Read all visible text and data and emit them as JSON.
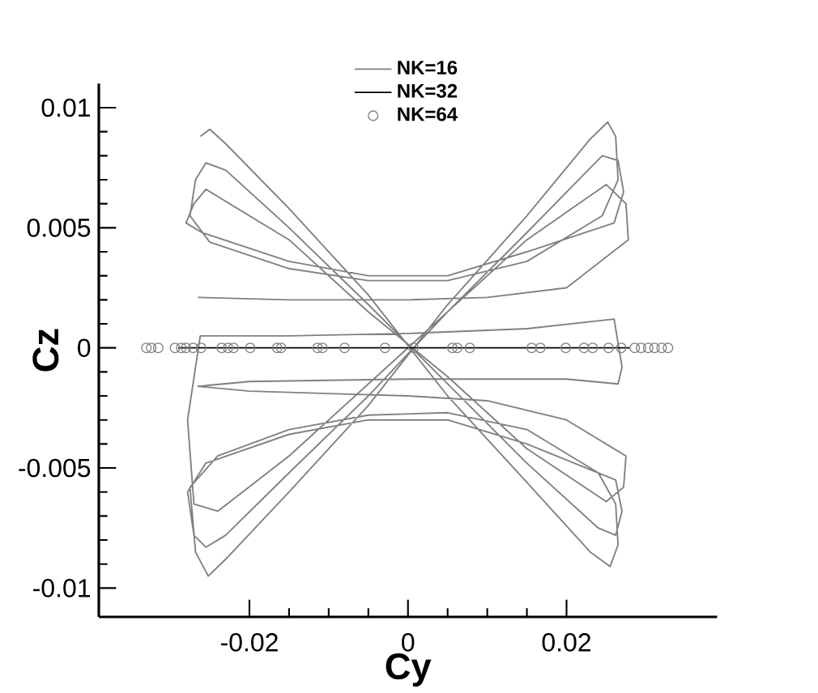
{
  "chart_data": {
    "type": "line",
    "xlabel": "Cy",
    "ylabel": "Cz",
    "xlim": [
      -0.039,
      0.039
    ],
    "ylim": [
      -0.0112,
      0.011
    ],
    "xticks": [
      -0.02,
      0,
      0.02
    ],
    "yticks": [
      -0.01,
      -0.005,
      0,
      0.005,
      0.01
    ],
    "legend": "top",
    "series": [
      {
        "name": "NK=16",
        "type": "line",
        "color": "#808080",
        "x": [
          -0.0262,
          -0.025,
          -0.023,
          -0.015,
          -0.005,
          0.005,
          0.015,
          0.023,
          0.0255,
          0.0265,
          0.0262,
          0.024,
          0.015,
          0.005,
          -0.005,
          -0.015,
          -0.024,
          -0.0275,
          -0.0268,
          -0.0252,
          -0.023,
          -0.015,
          -0.005,
          0.005,
          0.015,
          0.023,
          0.0252,
          0.0262,
          0.0265,
          0.0245,
          0.015,
          0.005,
          -0.005,
          -0.015,
          -0.025,
          -0.0275,
          -0.0268,
          -0.0255,
          -0.023,
          -0.015,
          -0.005,
          0.005,
          0.015,
          0.024,
          0.0262,
          0.027,
          0.0262,
          0.015,
          0.005,
          -0.005,
          -0.015,
          -0.0255,
          -0.0278,
          -0.027,
          -0.0255,
          -0.023,
          -0.015,
          -0.005,
          0.005,
          0.015,
          0.0245,
          0.0265,
          0.0272,
          0.026,
          0.015,
          0.005,
          -0.005,
          -0.015,
          -0.026,
          -0.028,
          -0.027,
          -0.0255,
          -0.015,
          -0.005,
          0.005,
          0.015,
          0.025,
          0.0272,
          0.0275,
          0.02,
          0.01,
          0,
          -0.01,
          -0.02,
          -0.0265,
          -0.02,
          0,
          0.02,
          0.0265,
          0.027,
          0.026,
          0.015,
          0,
          -0.015,
          -0.0262,
          -0.0278,
          -0.027,
          -0.024,
          -0.015,
          0,
          0.015,
          0.025,
          0.0275,
          0.0278,
          0.02,
          0.01,
          0,
          -0.015,
          -0.0265
        ],
        "values": [
          0.0088,
          0.0091,
          0.0085,
          0.0058,
          0.0022,
          -0.002,
          -0.0056,
          -0.0085,
          -0.0091,
          -0.0082,
          -0.0065,
          -0.0052,
          -0.0034,
          -0.0027,
          -0.0028,
          -0.0034,
          -0.0045,
          -0.0058,
          -0.0085,
          -0.0095,
          -0.0088,
          -0.006,
          -0.0024,
          0.0018,
          0.0055,
          0.0087,
          0.0094,
          0.0088,
          0.007,
          0.0055,
          0.0036,
          0.0028,
          0.0028,
          0.0033,
          0.0044,
          0.0055,
          0.007,
          0.0077,
          0.0074,
          0.005,
          0.0018,
          -0.0015,
          -0.0048,
          -0.0075,
          -0.0078,
          -0.0068,
          -0.0055,
          -0.004,
          -0.003,
          -0.003,
          -0.0036,
          -0.0048,
          -0.006,
          -0.0078,
          -0.0083,
          -0.0078,
          -0.0052,
          -0.002,
          0.0015,
          0.0048,
          0.008,
          0.0078,
          0.0065,
          0.0052,
          0.004,
          0.003,
          0.003,
          0.0036,
          0.0048,
          0.0052,
          0.006,
          0.0066,
          0.0045,
          0.0015,
          -0.0012,
          -0.0042,
          -0.0064,
          -0.0058,
          -0.0045,
          -0.003,
          -0.0022,
          -0.002,
          -0.0019,
          -0.0018,
          -0.0016,
          -0.0014,
          -0.0013,
          -0.0013,
          -0.0015,
          -0.0008,
          0.0012,
          0.0008,
          0.0006,
          0.0005,
          0.0005,
          -0.003,
          -0.0065,
          -0.0068,
          -0.0045,
          0,
          0.0045,
          0.0068,
          0.006,
          0.0045,
          0.0025,
          0.0021,
          0.002,
          0.002,
          0.0021
        ]
      },
      {
        "name": "NK=32",
        "type": "line",
        "color": "#000000",
        "x": [
          -0.029,
          0.028
        ],
        "values": [
          0,
          0
        ]
      },
      {
        "name": "NK=64",
        "type": "scatter",
        "marker": "circle",
        "color": "#808080",
        "x": [
          -0.033,
          -0.0324,
          -0.0315,
          -0.0294,
          -0.0286,
          -0.028,
          -0.0271,
          -0.0261,
          -0.0235,
          -0.0227,
          -0.022,
          -0.0199,
          -0.0165,
          -0.016,
          -0.0114,
          -0.0108,
          -0.008,
          -0.0029,
          0.0007,
          0.0056,
          0.0062,
          0.0078,
          0.0156,
          0.0167,
          0.0199,
          0.0222,
          0.0233,
          0.0253,
          0.0269,
          0.0286,
          0.0294,
          0.0303,
          0.0311,
          0.032,
          0.0328
        ],
        "values": [
          0,
          0,
          0,
          0,
          0,
          0,
          0,
          0,
          0,
          0,
          0,
          0,
          0,
          0,
          0,
          0,
          0,
          0,
          0,
          0,
          0,
          0,
          0,
          0,
          0,
          0,
          0,
          0,
          0,
          0,
          0,
          0,
          0,
          0,
          0
        ]
      }
    ]
  }
}
